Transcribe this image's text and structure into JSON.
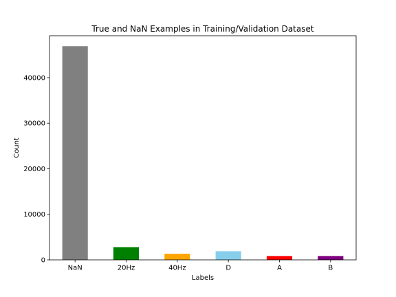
{
  "chart_data": {
    "type": "bar",
    "title": "True and NaN Examples in Training/Validation Dataset",
    "xlabel": "Labels",
    "ylabel": "Count",
    "categories": [
      "NaN",
      "20Hz",
      "40Hz",
      "D",
      "A",
      "B"
    ],
    "values": [
      46900,
      2800,
      1350,
      1900,
      850,
      850
    ],
    "colors": [
      "#808080",
      "#008000",
      "#ffa500",
      "#87ceeb",
      "#ff0000",
      "#800080"
    ],
    "ylim": [
      0,
      49200
    ],
    "yticks": [
      0,
      10000,
      20000,
      30000,
      40000
    ],
    "ytick_labels": [
      "0",
      "10000",
      "20000",
      "30000",
      "40000"
    ],
    "grid": false,
    "legend": false
  }
}
